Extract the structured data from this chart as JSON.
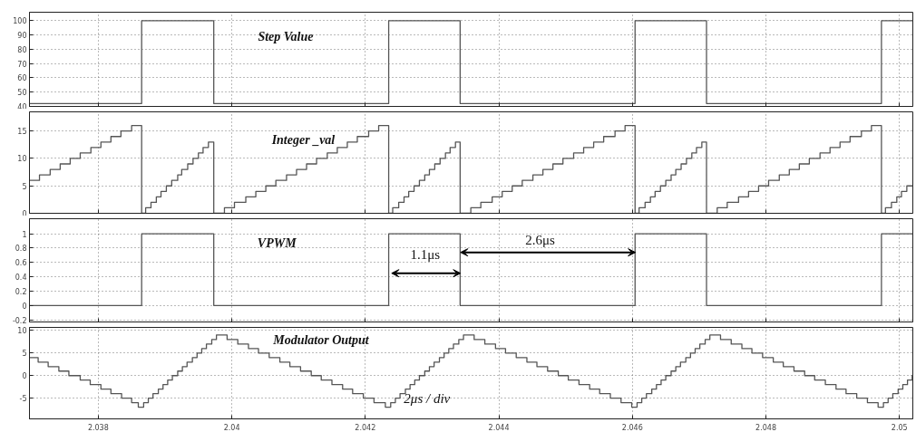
{
  "chart_data": [
    {
      "type": "step",
      "title": "Step Value",
      "xlim": [
        2.03697,
        2.0502
      ],
      "ylim": [
        40,
        106
      ],
      "xticks": [
        2.038,
        2.04,
        2.042,
        2.044,
        2.046,
        2.048,
        2.05
      ],
      "yticks": [
        40,
        50,
        60,
        70,
        80,
        90,
        100
      ],
      "grid": true,
      "tick_labels": "y",
      "series": [
        {
          "color": "#555555",
          "x": [
            2.03697,
            2.03865,
            2.03973,
            2.04235,
            2.04342,
            2.04604,
            2.04711,
            2.04973,
            2.0502
          ],
          "values": [
            42,
            100,
            42,
            100,
            42,
            100,
            42,
            100,
            100
          ]
        }
      ]
    },
    {
      "type": "step",
      "title": "Integer _val",
      "xlim": [
        2.03697,
        2.0502
      ],
      "ylim": [
        0,
        18.5
      ],
      "xticks": [
        2.038,
        2.04,
        2.042,
        2.044,
        2.046,
        2.048,
        2.05
      ],
      "yticks": [
        0,
        5,
        10,
        15
      ],
      "grid": true,
      "tick_labels": "y",
      "series": [
        {
          "color": "#555555",
          "x": [
            2.03697,
            2.03712,
            2.03728,
            2.03743,
            2.03758,
            2.03773,
            2.03789,
            2.03804,
            2.03819,
            2.03834,
            2.0385,
            2.03865,
            2.03871,
            2.03879,
            2.03887,
            2.03894,
            2.03902,
            2.0391,
            2.03919,
            2.03925,
            2.03934,
            2.03942,
            2.0395,
            2.03957,
            2.03965,
            2.03973,
            2.03989,
            2.04004,
            2.04021,
            2.04036,
            2.04051,
            2.04066,
            2.04082,
            2.04097,
            2.04112,
            2.04127,
            2.04143,
            2.04158,
            2.04173,
            2.04188,
            2.04205,
            2.0422,
            2.04235,
            2.04241,
            2.0425,
            2.04258,
            2.04265,
            2.04273,
            2.04281,
            2.04289,
            2.04296,
            2.04304,
            2.04312,
            2.0432,
            2.04327,
            2.04335,
            2.04342,
            2.04358,
            2.04373,
            2.0439,
            2.04405,
            2.0442,
            2.04435,
            2.04451,
            2.04466,
            2.04481,
            2.04496,
            2.04512,
            2.04527,
            2.04542,
            2.04557,
            2.04574,
            2.04589,
            2.04604,
            2.0461,
            2.04619,
            2.04627,
            2.04634,
            2.04642,
            2.0465,
            2.04658,
            2.04665,
            2.04673,
            2.04681,
            2.04689,
            2.04696,
            2.04704,
            2.04711,
            2.04727,
            2.04742,
            2.04759,
            2.04774,
            2.04789,
            2.04804,
            2.0482,
            2.04835,
            2.0485,
            2.04865,
            2.04881,
            2.04896,
            2.04911,
            2.04926,
            2.04943,
            2.04958,
            2.04973,
            2.04979,
            2.04988,
            2.04996,
            2.05003,
            2.05011,
            2.0502
          ],
          "values": [
            6,
            7,
            8,
            9,
            10,
            11,
            12,
            13,
            14,
            15,
            16,
            0,
            1,
            2,
            3,
            4,
            5,
            6,
            7,
            8,
            9,
            10,
            11,
            12,
            13,
            0,
            1,
            2,
            3,
            4,
            5,
            6,
            7,
            8,
            9,
            10,
            11,
            12,
            13,
            14,
            15,
            16,
            0,
            1,
            2,
            3,
            4,
            5,
            6,
            7,
            8,
            9,
            10,
            11,
            12,
            13,
            0,
            1,
            2,
            3,
            4,
            5,
            6,
            7,
            8,
            9,
            10,
            11,
            12,
            13,
            14,
            15,
            16,
            0,
            1,
            2,
            3,
            4,
            5,
            6,
            7,
            8,
            9,
            10,
            11,
            12,
            13,
            0,
            1,
            2,
            3,
            4,
            5,
            6,
            7,
            8,
            9,
            10,
            11,
            12,
            13,
            14,
            15,
            16,
            0,
            1,
            2,
            3,
            4,
            5,
            5
          ]
        }
      ]
    },
    {
      "type": "step",
      "title": "VPWM",
      "xlim": [
        2.03697,
        2.0502
      ],
      "ylim": [
        -0.23,
        1.21
      ],
      "xticks": [
        2.038,
        2.04,
        2.042,
        2.044,
        2.046,
        2.048,
        2.05
      ],
      "yticks": [
        -0.2,
        0,
        0.2,
        0.4,
        0.6,
        0.8,
        1
      ],
      "grid": true,
      "tick_labels": "y",
      "annotations": [
        "1.1μs",
        "2.6μs"
      ],
      "series": [
        {
          "color": "#555555",
          "x": [
            2.03697,
            2.03865,
            2.03973,
            2.04235,
            2.04342,
            2.04604,
            2.04711,
            2.04973,
            2.0502
          ],
          "values": [
            0,
            1,
            0,
            1,
            0,
            1,
            0,
            1,
            1
          ]
        }
      ]
    },
    {
      "type": "step",
      "title": "Modulator Output",
      "xlim": [
        2.03697,
        2.0502
      ],
      "ylim": [
        -9.6,
        10.7
      ],
      "xticks": [
        2.038,
        2.04,
        2.042,
        2.044,
        2.046,
        2.048,
        2.05
      ],
      "yticks": [
        -5,
        0,
        5,
        10
      ],
      "grid": true,
      "annotations": [
        "2μs / div"
      ],
      "series": [
        {
          "color": "#555555",
          "x": [
            2.03697,
            2.0371,
            2.03725,
            2.03741,
            2.03756,
            2.03773,
            2.03788,
            2.03804,
            2.03819,
            2.03835,
            2.0385,
            2.0386,
            2.03868,
            2.03875,
            2.03882,
            2.0389,
            2.03897,
            2.03904,
            2.03911,
            2.03919,
            2.03926,
            2.03933,
            2.03941,
            2.03948,
            2.03955,
            2.03962,
            2.0397,
            2.03977,
            2.03993,
            2.04009,
            2.04025,
            2.0404,
            2.04056,
            2.04072,
            2.04087,
            2.04103,
            2.04119,
            2.04134,
            2.0415,
            2.04166,
            2.04181,
            2.04197,
            2.04213,
            2.0423,
            2.04238,
            2.04245,
            2.04252,
            2.0426,
            2.04267,
            2.04274,
            2.04281,
            2.04289,
            2.04296,
            2.04303,
            2.04311,
            2.04318,
            2.04325,
            2.04332,
            2.0434,
            2.04347,
            2.04363,
            2.04379,
            2.04395,
            2.0441,
            2.04426,
            2.04442,
            2.04457,
            2.04473,
            2.04489,
            2.04504,
            2.0452,
            2.04536,
            2.04551,
            2.04567,
            2.04583,
            2.04599,
            2.04607,
            2.04614,
            2.04621,
            2.04629,
            2.04636,
            2.04643,
            2.0465,
            2.04658,
            2.04665,
            2.04672,
            2.0468,
            2.04687,
            2.04694,
            2.04701,
            2.04709,
            2.04716,
            2.04732,
            2.04748,
            2.04764,
            2.04779,
            2.04795,
            2.04811,
            2.04826,
            2.04842,
            2.04858,
            2.04873,
            2.04889,
            2.04905,
            2.0492,
            2.04936,
            2.04952,
            2.04968,
            2.04976,
            2.04983,
            2.0499,
            2.04998,
            2.05005,
            2.05012,
            2.05019,
            2.0502
          ],
          "values": [
            4,
            3,
            2,
            1,
            0,
            -1,
            -2,
            -3,
            -4,
            -5,
            -6,
            -7,
            -6,
            -5,
            -4,
            -3,
            -2,
            -1,
            0,
            1,
            2,
            3,
            4,
            5,
            6,
            7,
            8,
            9,
            8,
            7,
            6,
            5,
            4,
            3,
            2,
            1,
            0,
            -1,
            -2,
            -3,
            -4,
            -5,
            -6,
            -7,
            -6,
            -5,
            -4,
            -3,
            -2,
            -1,
            0,
            1,
            2,
            3,
            4,
            5,
            6,
            7,
            8,
            9,
            8,
            7,
            6,
            5,
            4,
            3,
            2,
            1,
            0,
            -1,
            -2,
            -3,
            -4,
            -5,
            -6,
            -7,
            -6,
            -5,
            -4,
            -3,
            -2,
            -1,
            0,
            1,
            2,
            3,
            4,
            5,
            6,
            7,
            8,
            9,
            8,
            7,
            6,
            5,
            4,
            3,
            2,
            1,
            0,
            -1,
            -2,
            -3,
            -4,
            -5,
            -6,
            -7,
            -6,
            -5,
            -4,
            -3,
            -2,
            -1,
            0,
            0
          ]
        }
      ]
    }
  ]
}
